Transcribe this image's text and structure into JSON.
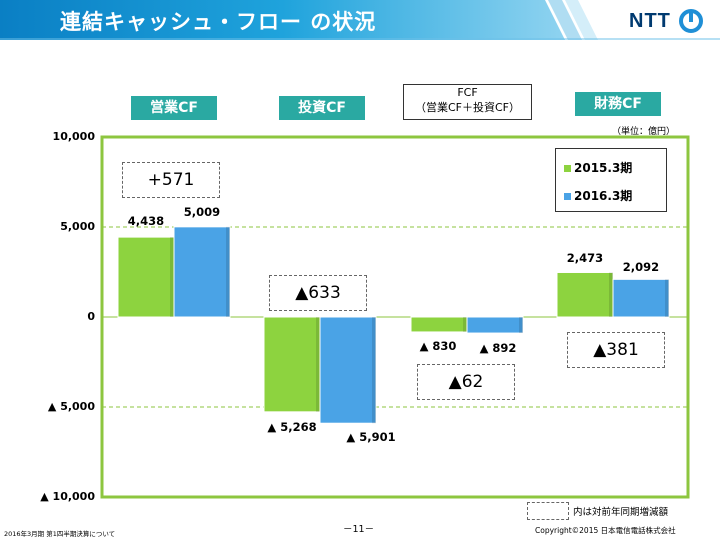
{
  "header": {
    "title": "連結キャッシュ・フロー の状況",
    "brand": "NTT"
  },
  "categories": [
    {
      "label": "営業CF"
    },
    {
      "label": "投資CF"
    },
    {
      "label_line1": "FCF",
      "label_line2": "（営業CF＋投資CF）"
    },
    {
      "label": "財務CF"
    }
  ],
  "unit_note": "（単位：億円）",
  "y_ticks": [
    "10,000",
    "5,000",
    "0",
    "▲ 5,000",
    "▲ 10,000"
  ],
  "value_labels": [
    "4,438",
    "5,009",
    "▲ 5,268",
    "▲ 5,901",
    "▲ 830",
    "▲ 892",
    "2,473",
    "2,092"
  ],
  "differences": [
    "+571",
    "▲633",
    "▲62",
    "▲381"
  ],
  "legend": [
    "2015.3期",
    "2016.3期"
  ],
  "colors": {
    "series1": "#8dd33f",
    "series2": "#4aa3e6",
    "plot_border": "#8dc63f",
    "grid": "#8dc63f",
    "header": "#1fa3dc"
  },
  "chart_data": {
    "type": "bar",
    "categories": [
      "営業CF",
      "投資CF",
      "FCF（営業CF＋投資CF）",
      "財務CF"
    ],
    "series": [
      {
        "name": "2015.3期",
        "values": [
          4438,
          -5268,
          -830,
          2473
        ]
      },
      {
        "name": "2016.3期",
        "values": [
          5009,
          -5901,
          -892,
          2092
        ]
      }
    ],
    "ylim": [
      -10000,
      10000
    ],
    "y_ticks": [
      10000,
      5000,
      0,
      -5000,
      -10000
    ],
    "grid": true,
    "legend_position": "top-right",
    "annotations": [
      "+571",
      "▲633",
      "▲62",
      "▲381"
    ]
  },
  "note": "内は対前年同期増減額",
  "page_number": "－11－",
  "footer_left": "2016年3月期 第1四半期決算について",
  "footer_right": "Copyright©2015 日本電信電話株式会社"
}
